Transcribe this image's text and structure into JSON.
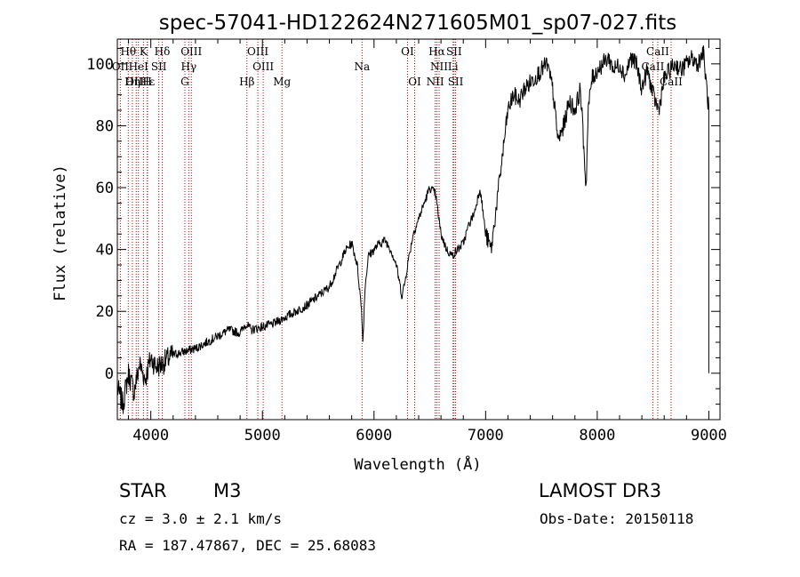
{
  "chart_data": {
    "type": "line",
    "title": "spec-57041-HD122624N271605M01_sp07-027.fits",
    "xlabel": "Wavelength (Å)",
    "ylabel": "Flux (relative)",
    "xlim": [
      3700,
      9100
    ],
    "ylim": [
      -15,
      108
    ],
    "xticks": [
      4000,
      5000,
      6000,
      7000,
      8000,
      9000
    ],
    "yticks": [
      0,
      20,
      40,
      60,
      80,
      100
    ],
    "line_color": "#000000",
    "marker_color": "#c00000",
    "series": [
      {
        "name": "spectrum",
        "x": [
          3700,
          3750,
          3800,
          3850,
          3900,
          3950,
          4000,
          4050,
          4100,
          4200,
          4300,
          4400,
          4500,
          4600,
          4700,
          4800,
          4850,
          4900,
          5000,
          5100,
          5200,
          5300,
          5400,
          5500,
          5600,
          5700,
          5750,
          5800,
          5850,
          5890,
          5900,
          5920,
          5950,
          6000,
          6050,
          6100,
          6150,
          6200,
          6250,
          6280,
          6300,
          6350,
          6400,
          6450,
          6500,
          6550,
          6600,
          6650,
          6700,
          6750,
          6800,
          6850,
          6900,
          6950,
          7000,
          7050,
          7100,
          7150,
          7200,
          7250,
          7300,
          7350,
          7400,
          7450,
          7500,
          7550,
          7600,
          7650,
          7700,
          7750,
          7800,
          7850,
          7900,
          7920,
          7950,
          8000,
          8050,
          8100,
          8150,
          8200,
          8250,
          8300,
          8350,
          8400,
          8450,
          8500,
          8550,
          8600,
          8650,
          8700,
          8750,
          8800,
          8850,
          8900,
          8950,
          9000
        ],
        "y": [
          -5,
          -10,
          0,
          -6,
          3,
          -2,
          5,
          2,
          3,
          6,
          7,
          8,
          10,
          12,
          14,
          13,
          16,
          14,
          15,
          16,
          18,
          20,
          22,
          25,
          28,
          36,
          40,
          42,
          35,
          20,
          10,
          28,
          38,
          40,
          42,
          43,
          40,
          35,
          25,
          30,
          35,
          45,
          50,
          55,
          60,
          58,
          45,
          40,
          38,
          40,
          42,
          48,
          52,
          60,
          45,
          40,
          55,
          70,
          85,
          90,
          88,
          92,
          94,
          96,
          98,
          100,
          92,
          75,
          80,
          88,
          85,
          92,
          60,
          85,
          95,
          98,
          100,
          102,
          98,
          100,
          96,
          102,
          100,
          92,
          98,
          90,
          85,
          95,
          98,
          100,
          98,
          100,
          102,
          100,
          104,
          85
        ]
      }
    ],
    "line_markers": [
      {
        "label": "Hθ",
        "wl": 3798,
        "row": 0
      },
      {
        "label": "K",
        "wl": 3934,
        "row": 0
      },
      {
        "label": "Hδ",
        "wl": 4102,
        "row": 0
      },
      {
        "label": "OIII",
        "wl": 4363,
        "row": 0
      },
      {
        "label": "OIII",
        "wl": 4959,
        "row": 0
      },
      {
        "label": "OI",
        "wl": 6300,
        "row": 0
      },
      {
        "label": "Hα",
        "wl": 6563,
        "row": 0
      },
      {
        "label": "SII",
        "wl": 6717,
        "row": 0
      },
      {
        "label": "CaII",
        "wl": 8542,
        "row": 0
      },
      {
        "label": "OII",
        "wl": 3727,
        "row": 1
      },
      {
        "label": "HeI",
        "wl": 3889,
        "row": 1
      },
      {
        "label": "SII",
        "wl": 4072,
        "row": 1
      },
      {
        "label": "Hγ",
        "wl": 4340,
        "row": 1
      },
      {
        "label": "OIII",
        "wl": 5007,
        "row": 1
      },
      {
        "label": "Na",
        "wl": 5893,
        "row": 1
      },
      {
        "label": "NII",
        "wl": 6583,
        "row": 1
      },
      {
        "label": "Li",
        "wl": 6708,
        "row": 1
      },
      {
        "label": "CaII",
        "wl": 8498,
        "row": 1
      },
      {
        "label": "OIII",
        "wl": 3869,
        "row": 2
      },
      {
        "label": "Hε",
        "wl": 3970,
        "row": 2
      },
      {
        "label": "Hη",
        "wl": 3835,
        "row": 2
      },
      {
        "label": "H",
        "wl": 3968,
        "row": 2
      },
      {
        "label": "G",
        "wl": 4305,
        "row": 2
      },
      {
        "label": "Hβ",
        "wl": 4861,
        "row": 2
      },
      {
        "label": "Mg",
        "wl": 5175,
        "row": 2
      },
      {
        "label": "OI",
        "wl": 6364,
        "row": 2
      },
      {
        "label": "NII",
        "wl": 6548,
        "row": 2
      },
      {
        "label": "SII",
        "wl": 6731,
        "row": 2
      },
      {
        "label": "CaII",
        "wl": 8662,
        "row": 2
      }
    ],
    "marker_wavelengths": [
      3727,
      3798,
      3835,
      3869,
      3889,
      3934,
      3968,
      3970,
      4072,
      4102,
      4305,
      4340,
      4363,
      4861,
      4959,
      5007,
      5175,
      5893,
      6300,
      6364,
      6548,
      6563,
      6583,
      6708,
      6717,
      6731,
      8498,
      8542,
      8662
    ]
  },
  "info": {
    "object_type": "STAR",
    "subclass": "M3",
    "survey": "LAMOST DR3",
    "cz": "cz = 3.0 ± 2.1 km/s",
    "obs_date": "Obs-Date: 20150118",
    "coords": "RA = 187.47867, DEC =  25.68083"
  }
}
